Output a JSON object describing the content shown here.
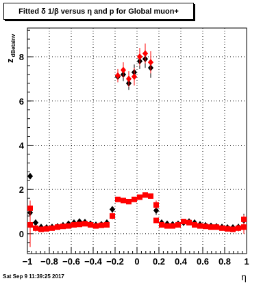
{
  "title": "Fitted δ 1/β versus η and p for Global muon+",
  "footer": "Sat Sep  9 11:39:25 2017",
  "colors": {
    "series_a": "#000000",
    "series_b": "#ff0000"
  },
  "chart_data": {
    "type": "scatter",
    "title": "Fitted δ 1/β versus η and p for Global muon+",
    "xlabel": "η",
    "ylabel": "z",
    "ylabel_subscript": "dBetainv",
    "xlim": [
      -1,
      1
    ],
    "ylim": [
      -0.9,
      9.3
    ],
    "grid": true,
    "xticks": [
      -1,
      -0.8,
      -0.6,
      -0.4,
      -0.2,
      0,
      0.2,
      0.4,
      0.6,
      0.8,
      1
    ],
    "xtick_labels": [
      "−1",
      "−0.8",
      "−0.6",
      "−0.4",
      "−0.2",
      "0",
      "0.2",
      "0.4",
      "0.6",
      "0.8",
      "1"
    ],
    "yticks": [
      0,
      2,
      4,
      6,
      8
    ],
    "ytick_labels": [
      "0",
      "2",
      "4",
      "6",
      "8"
    ],
    "series": [
      {
        "marker": "diamond",
        "color": "#000000",
        "points": [
          [
            -0.975,
            2.6,
            0.0
          ],
          [
            -0.975,
            0.95,
            0.5
          ],
          [
            -0.925,
            0.5,
            0.15
          ],
          [
            -0.875,
            0.3,
            0.1
          ],
          [
            -0.825,
            0.28,
            0.1
          ],
          [
            -0.775,
            0.3,
            0.1
          ],
          [
            -0.725,
            0.33,
            0.1
          ],
          [
            -0.675,
            0.38,
            0.1
          ],
          [
            -0.625,
            0.45,
            0.1
          ],
          [
            -0.575,
            0.5,
            0.1
          ],
          [
            -0.525,
            0.55,
            0.1
          ],
          [
            -0.475,
            0.52,
            0.1
          ],
          [
            -0.425,
            0.45,
            0.1
          ],
          [
            -0.375,
            0.4,
            0.1
          ],
          [
            -0.325,
            0.42,
            0.1
          ],
          [
            -0.275,
            0.5,
            0.1
          ],
          [
            -0.225,
            1.1,
            0.15
          ],
          [
            -0.175,
            7.1,
            0.25
          ],
          [
            -0.125,
            7.2,
            0.3
          ],
          [
            -0.075,
            6.8,
            0.3
          ],
          [
            -0.025,
            7.3,
            0.35
          ],
          [
            0.025,
            7.8,
            0.35
          ],
          [
            0.075,
            7.9,
            0.4
          ],
          [
            0.125,
            7.5,
            0.45
          ],
          [
            0.175,
            1.05,
            0.2
          ],
          [
            0.225,
            0.5,
            0.1
          ],
          [
            0.275,
            0.45,
            0.1
          ],
          [
            0.325,
            0.42,
            0.1
          ],
          [
            0.375,
            0.45,
            0.1
          ],
          [
            0.425,
            0.5,
            0.1
          ],
          [
            0.475,
            0.55,
            0.1
          ],
          [
            0.525,
            0.5,
            0.1
          ],
          [
            0.575,
            0.42,
            0.1
          ],
          [
            0.625,
            0.38,
            0.1
          ],
          [
            0.675,
            0.35,
            0.1
          ],
          [
            0.725,
            0.33,
            0.1
          ],
          [
            0.775,
            0.3,
            0.1
          ],
          [
            0.825,
            0.28,
            0.1
          ],
          [
            0.875,
            0.28,
            0.1
          ],
          [
            0.925,
            0.3,
            0.15
          ],
          [
            0.975,
            0.6,
            0.3
          ]
        ]
      },
      {
        "marker": "square",
        "color": "#ff0000",
        "points": [
          [
            -0.975,
            1.15,
            0.35
          ],
          [
            -0.975,
            0.4,
            1.0
          ],
          [
            -0.925,
            0.25,
            0.15
          ],
          [
            -0.875,
            0.2,
            0.1
          ],
          [
            -0.825,
            0.22,
            0.1
          ],
          [
            -0.775,
            0.25,
            0.1
          ],
          [
            -0.725,
            0.3,
            0.1
          ],
          [
            -0.675,
            0.33,
            0.1
          ],
          [
            -0.625,
            0.35,
            0.1
          ],
          [
            -0.575,
            0.4,
            0.1
          ],
          [
            -0.525,
            0.42,
            0.1
          ],
          [
            -0.475,
            0.45,
            0.1
          ],
          [
            -0.425,
            0.4,
            0.1
          ],
          [
            -0.375,
            0.35,
            0.1
          ],
          [
            -0.325,
            0.38,
            0.1
          ],
          [
            -0.275,
            0.4,
            0.1
          ],
          [
            -0.225,
            0.8,
            0.15
          ],
          [
            -0.175,
            1.55,
            0.1
          ],
          [
            -0.125,
            1.5,
            0.1
          ],
          [
            -0.075,
            1.45,
            0.1
          ],
          [
            -0.025,
            1.55,
            0.1
          ],
          [
            0.025,
            1.65,
            0.1
          ],
          [
            0.075,
            1.75,
            0.1
          ],
          [
            0.125,
            1.7,
            0.1
          ],
          [
            0.175,
            1.3,
            0.2
          ],
          [
            0.175,
            0.6,
            0.1
          ],
          [
            0.225,
            0.4,
            0.1
          ],
          [
            0.275,
            0.35,
            0.1
          ],
          [
            0.325,
            0.35,
            0.1
          ],
          [
            0.375,
            0.4,
            0.1
          ],
          [
            0.425,
            0.55,
            0.1
          ],
          [
            0.475,
            0.5,
            0.1
          ],
          [
            0.525,
            0.4,
            0.1
          ],
          [
            0.575,
            0.35,
            0.1
          ],
          [
            0.625,
            0.33,
            0.1
          ],
          [
            0.675,
            0.3,
            0.1
          ],
          [
            0.725,
            0.3,
            0.1
          ],
          [
            0.775,
            0.25,
            0.1
          ],
          [
            0.825,
            0.22,
            0.1
          ],
          [
            0.875,
            0.2,
            0.1
          ],
          [
            0.925,
            0.25,
            0.15
          ],
          [
            0.975,
            0.3,
            0.3
          ],
          [
            0.975,
            0.65,
            0.2
          ]
        ]
      },
      {
        "marker": "diamond",
        "color": "#ff0000",
        "points": [
          [
            -0.175,
            7.15,
            0.3
          ],
          [
            -0.125,
            7.4,
            0.35
          ],
          [
            -0.075,
            7.0,
            0.35
          ],
          [
            -0.025,
            7.1,
            0.4
          ],
          [
            0.025,
            8.0,
            0.4
          ],
          [
            0.075,
            8.15,
            0.45
          ],
          [
            0.125,
            7.75,
            0.5
          ]
        ]
      }
    ]
  }
}
